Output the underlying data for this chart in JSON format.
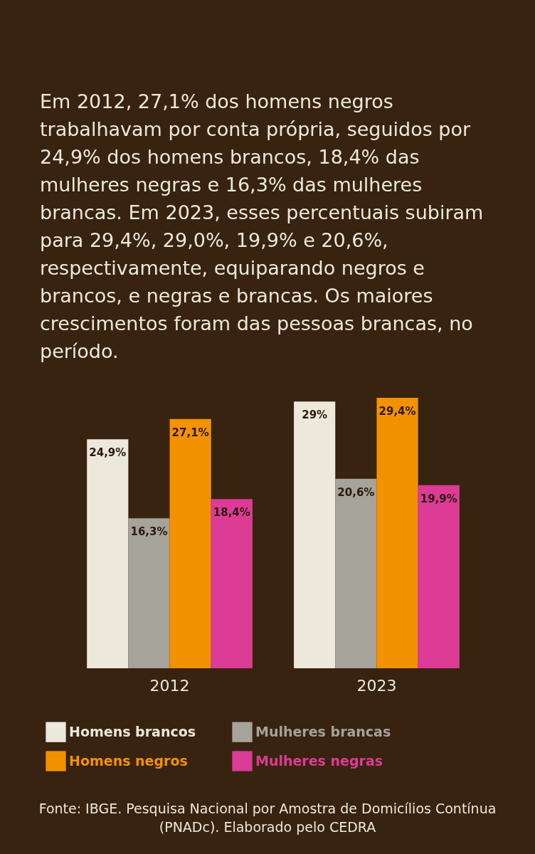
{
  "chart_data": {
    "type": "bar",
    "title": "Em 2012, 27,1% dos homens negros trabalhavam por conta própria, seguidos por 24,9% dos homens brancos, 18,4% das mulheres negras e 16,3% das mulheres brancas. Em 2023, esses percentuais subiram para 29,4%, 29,0%, 19,9% e 20,6%, respectivamente, equiparando negros e brancos, e negras e brancas. Os maiores crescimentos foram das pessoas brancas, no período.",
    "categories": [
      "2012",
      "2023"
    ],
    "series": [
      {
        "name": "Homens brancos",
        "color": "#ece8dc",
        "values": [
          24.9,
          29.0
        ],
        "value_labels": [
          "24,9%",
          "29%"
        ]
      },
      {
        "name": "Mulheres brancas",
        "color": "#a5a39a",
        "values": [
          16.3,
          20.6
        ],
        "value_labels": [
          "16,3%",
          "20,6%"
        ]
      },
      {
        "name": "Homens negros",
        "color": "#f39200",
        "values": [
          27.1,
          29.4
        ],
        "value_labels": [
          "27,1%",
          "29,4%"
        ]
      },
      {
        "name": "Mulheres negras",
        "color": "#dc3b96",
        "values": [
          18.4,
          19.9
        ],
        "value_labels": [
          "18,4%",
          "19,9%"
        ]
      }
    ],
    "legend": "bottom",
    "annotations": [
      "Fonte: IBGE. Pesquisa Nacional por Amostra de Domicílios Contínua (PNADc). Elaborado pelo CEDRA"
    ]
  }
}
